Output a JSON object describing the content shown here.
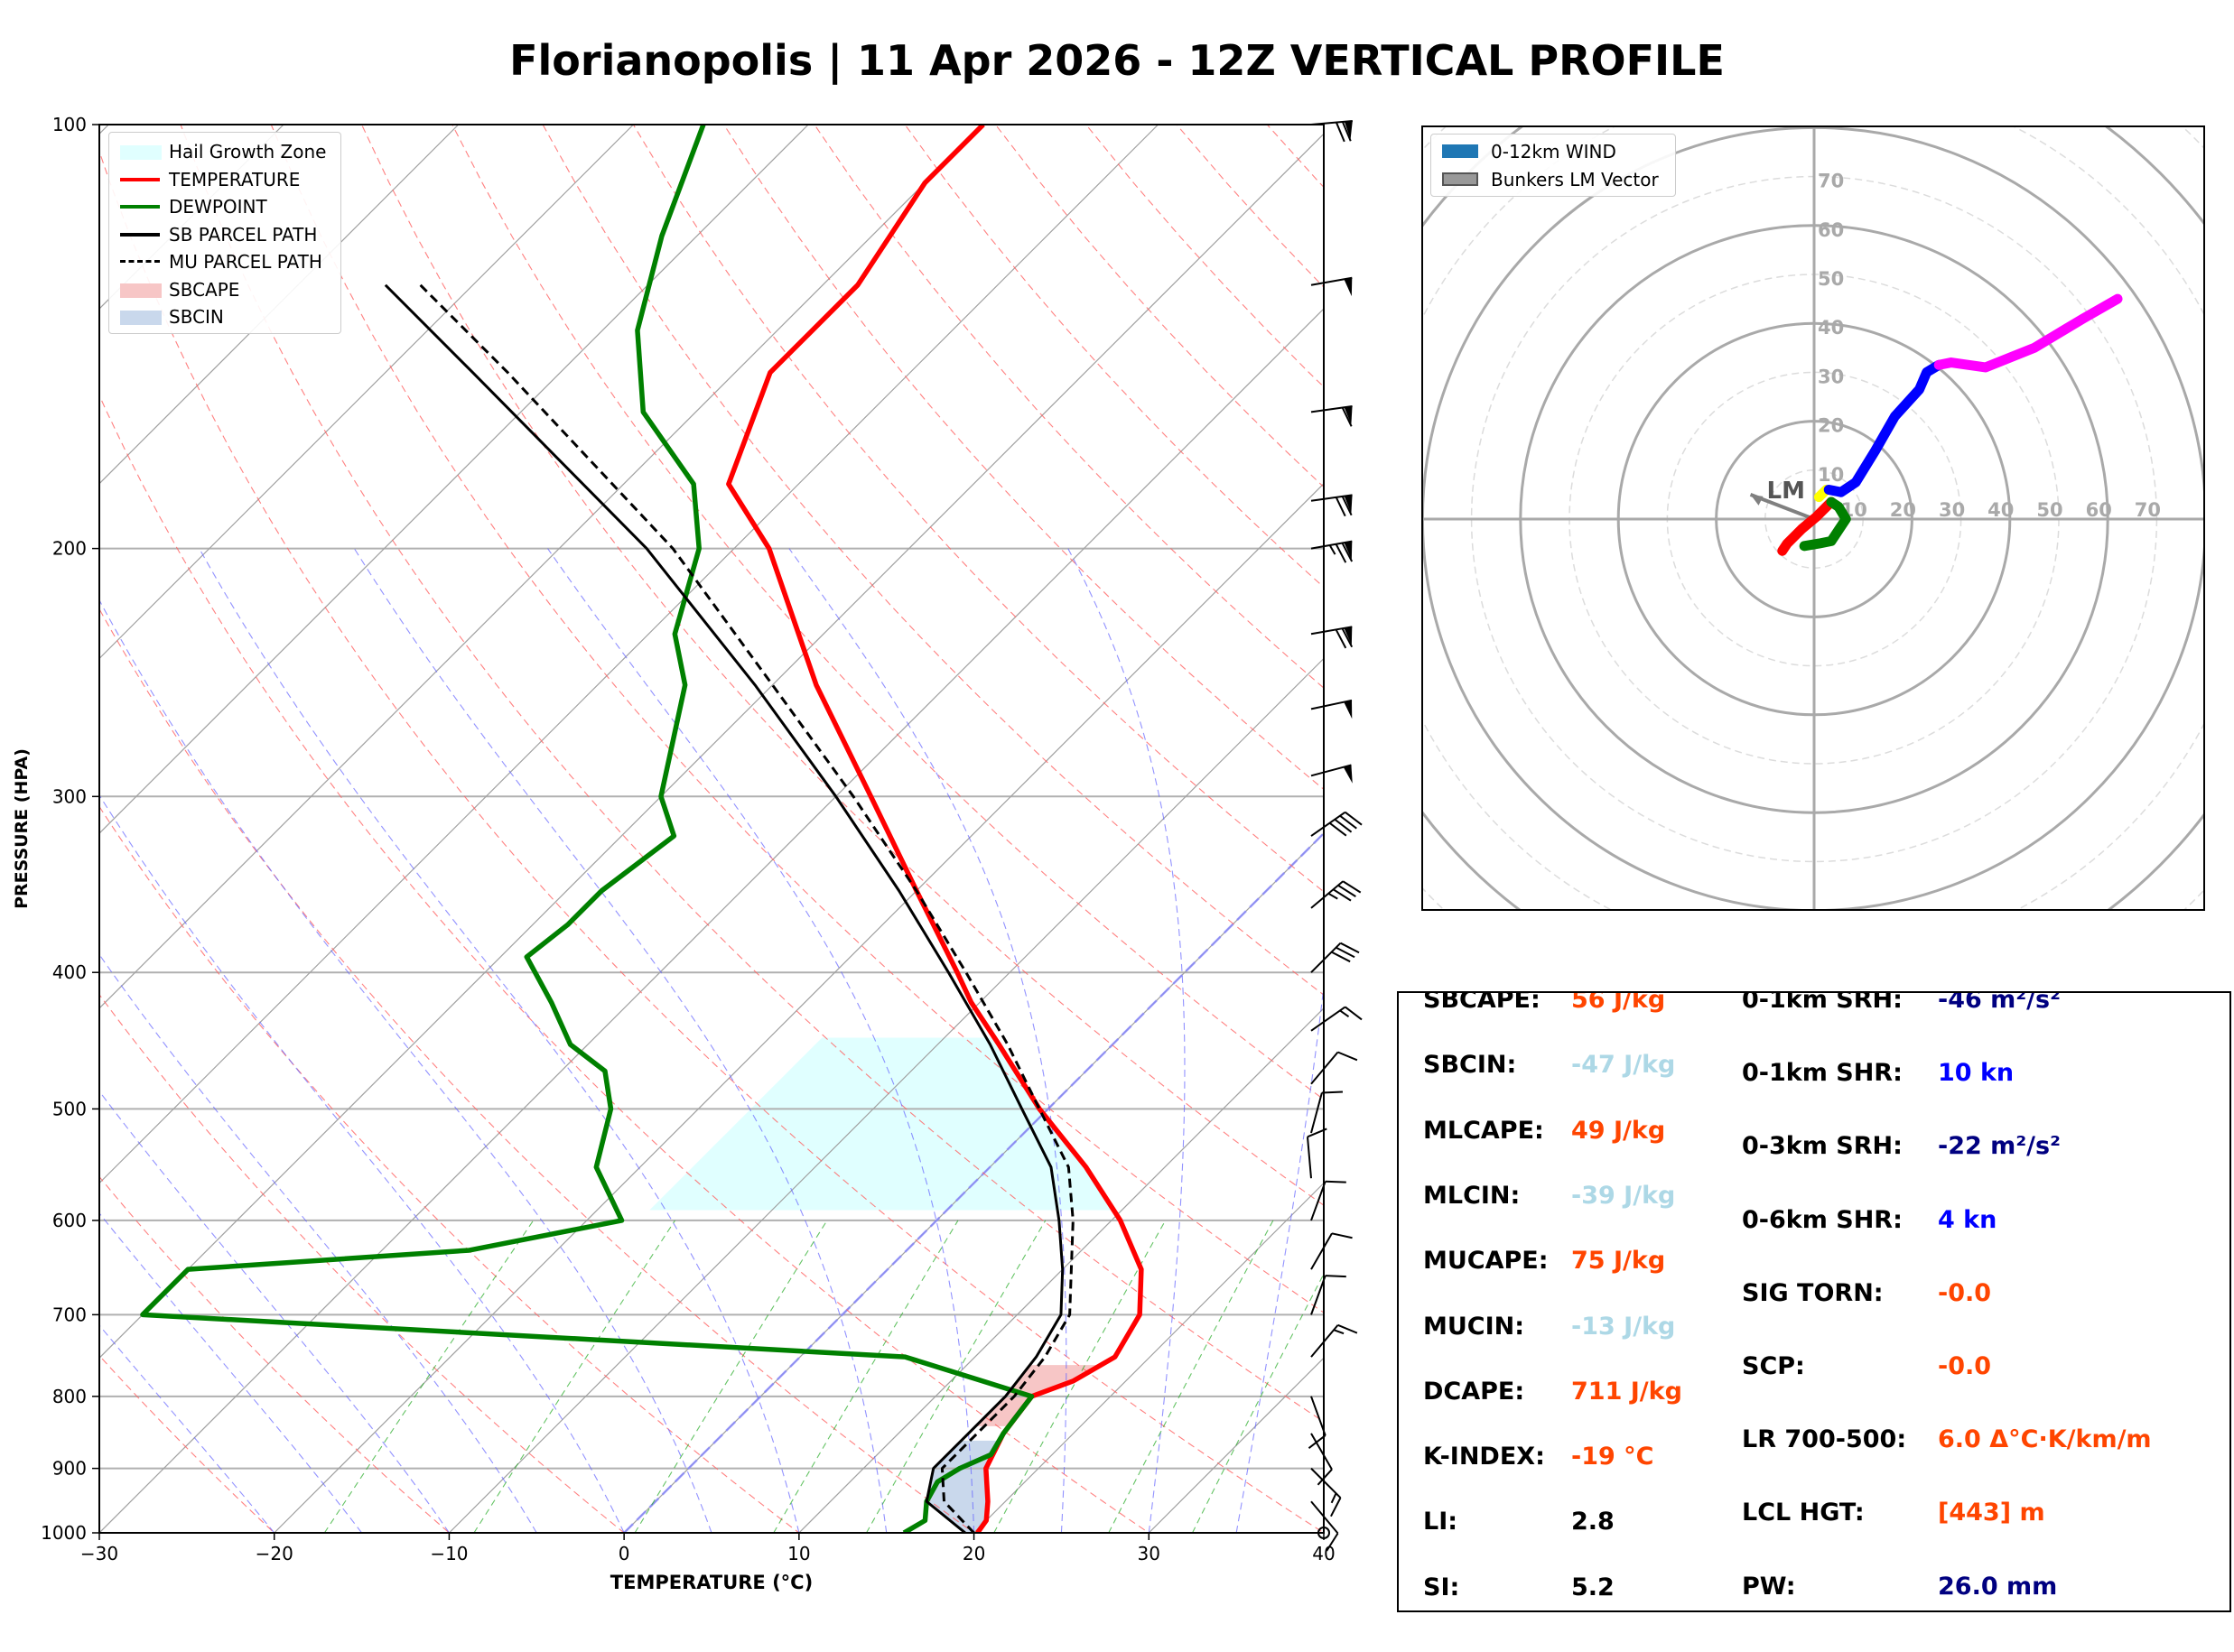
{
  "title": "Florianopolis | 11 Apr 2026 - 12Z VERTICAL PROFILE",
  "chart_data": [
    {
      "type": "line",
      "subtype": "skew-t log-p diagram",
      "xlabel": "TEMPERATURE (°C)",
      "ylabel": "PRESSURE (HPA)",
      "xlim": [
        -30,
        40
      ],
      "ylim": [
        1000,
        100
      ],
      "y_scale": "log",
      "x_ticks": [
        -30,
        -20,
        -10,
        0,
        10,
        20,
        30,
        40
      ],
      "y_ticks": [
        100,
        200,
        300,
        400,
        500,
        600,
        700,
        800,
        900,
        1000
      ],
      "grid": true,
      "legend_position": "top-left",
      "legend": [
        {
          "label": "Hail Growth Zone",
          "color": "#e0ffff",
          "style": "fill"
        },
        {
          "label": "TEMPERATURE",
          "color": "#ff0000",
          "style": "solid"
        },
        {
          "label": "DEWPOINT",
          "color": "#008000",
          "style": "solid"
        },
        {
          "label": "SB PARCEL PATH",
          "color": "#000000",
          "style": "solid"
        },
        {
          "label": "MU PARCEL PATH",
          "color": "#000000",
          "style": "dashed"
        },
        {
          "label": "SBCAPE",
          "color": "#f7c6c6",
          "style": "fill"
        },
        {
          "label": "SBCIN",
          "color": "#c9d8ec",
          "style": "fill"
        }
      ],
      "hail_growth_zone_hpa": [
        445,
        590
      ],
      "series": [
        {
          "name": "TEMPERATURE",
          "color": "#ff0000",
          "pressure": [
            1000,
            980,
            950,
            900,
            850,
            800,
            780,
            750,
            700,
            650,
            600,
            550,
            500,
            450,
            420,
            400,
            350,
            300,
            250,
            200,
            180,
            150,
            130,
            110,
            100
          ],
          "values": [
            20.2,
            20.0,
            19.0,
            17.0,
            16.0,
            15.5,
            17.0,
            18.0,
            17.0,
            14.5,
            10.5,
            5.5,
            -0.5,
            -6.5,
            -10.5,
            -13.0,
            -20.0,
            -28.0,
            -37.5,
            -48.0,
            -54.0,
            -58.0,
            -58.0,
            -60.0,
            -60.0
          ]
        },
        {
          "name": "DEWPOINT",
          "color": "#008000",
          "pressure": [
            1000,
            980,
            950,
            920,
            900,
            880,
            850,
            830,
            800,
            750,
            700,
            650,
            630,
            600,
            550,
            500,
            470,
            450,
            420,
            390,
            370,
            350,
            320,
            300,
            250,
            230,
            200,
            180,
            160,
            140,
            120,
            100
          ],
          "values": [
            16.0,
            16.5,
            15.5,
            15.0,
            15.5,
            16.5,
            16.0,
            15.8,
            15.5,
            6.0,
            -40.0,
            -40.0,
            -25.0,
            -18.0,
            -22.5,
            -25.0,
            -27.5,
            -31.0,
            -34.5,
            -38.5,
            -38.0,
            -38.0,
            -37.0,
            -40.0,
            -45.0,
            -48.5,
            -52.0,
            -56.0,
            -63.0,
            -68.0,
            -72.0,
            -76.0
          ]
        },
        {
          "name": "SB PARCEL PATH",
          "color": "#000000",
          "pressure": [
            1000,
            950,
            900,
            850,
            800,
            750,
            700,
            650,
            600,
            550,
            500,
            450,
            400,
            350,
            300,
            250,
            200,
            150,
            130
          ],
          "values": [
            19.5,
            15.5,
            14.0,
            14.0,
            14.0,
            13.5,
            12.5,
            10.0,
            7.0,
            3.5,
            -1.5,
            -7.0,
            -13.5,
            -21.0,
            -30.0,
            -41.0,
            -55.0,
            -75.0,
            -85.0
          ]
        },
        {
          "name": "MU PARCEL PATH",
          "color": "#000000",
          "dashed": true,
          "pressure": [
            1000,
            950,
            900,
            850,
            800,
            750,
            700,
            650,
            600,
            550,
            500,
            450,
            400,
            350,
            300,
            250,
            200,
            150,
            130
          ],
          "values": [
            20.0,
            16.5,
            14.5,
            14.5,
            14.5,
            14.0,
            13.0,
            10.5,
            7.8,
            4.5,
            -0.5,
            -6.0,
            -12.5,
            -20.0,
            -29.0,
            -40.0,
            -53.5,
            -73.0,
            -83.0
          ]
        }
      ],
      "wind_barbs": [
        {
          "pressure": 100,
          "speed_kt": 70,
          "direction_deg": 265
        },
        {
          "pressure": 130,
          "speed_kt": 50,
          "direction_deg": 260
        },
        {
          "pressure": 160,
          "speed_kt": 60,
          "direction_deg": 262
        },
        {
          "pressure": 185,
          "speed_kt": 70,
          "direction_deg": 262
        },
        {
          "pressure": 200,
          "speed_kt": 75,
          "direction_deg": 260
        },
        {
          "pressure": 230,
          "speed_kt": 70,
          "direction_deg": 260
        },
        {
          "pressure": 260,
          "speed_kt": 50,
          "direction_deg": 258
        },
        {
          "pressure": 290,
          "speed_kt": 50,
          "direction_deg": 255
        },
        {
          "pressure": 320,
          "speed_kt": 40,
          "direction_deg": 235
        },
        {
          "pressure": 360,
          "speed_kt": 35,
          "direction_deg": 230
        },
        {
          "pressure": 400,
          "speed_kt": 30,
          "direction_deg": 225
        },
        {
          "pressure": 440,
          "speed_kt": 15,
          "direction_deg": 235
        },
        {
          "pressure": 480,
          "speed_kt": 10,
          "direction_deg": 220
        },
        {
          "pressure": 520,
          "speed_kt": 10,
          "direction_deg": 195
        },
        {
          "pressure": 560,
          "speed_kt": 10,
          "direction_deg": 175
        },
        {
          "pressure": 600,
          "speed_kt": 10,
          "direction_deg": 200
        },
        {
          "pressure": 650,
          "speed_kt": 10,
          "direction_deg": 210
        },
        {
          "pressure": 700,
          "speed_kt": 10,
          "direction_deg": 200
        },
        {
          "pressure": 750,
          "speed_kt": 15,
          "direction_deg": 220
        },
        {
          "pressure": 800,
          "speed_kt": 10,
          "direction_deg": 340
        },
        {
          "pressure": 850,
          "speed_kt": 10,
          "direction_deg": 330
        },
        {
          "pressure": 900,
          "speed_kt": 15,
          "direction_deg": 315
        },
        {
          "pressure": 950,
          "speed_kt": 10,
          "direction_deg": 320
        },
        {
          "pressure": 1000,
          "speed_kt": 0,
          "direction_deg": 0
        }
      ]
    },
    {
      "type": "line",
      "subtype": "hodograph",
      "units": "kn",
      "ring_labels": [
        10,
        20,
        30,
        40,
        50,
        60,
        70
      ],
      "legend_position": "top-left",
      "legend": [
        {
          "label": "0-12km WIND",
          "color": "#1f77b4"
        },
        {
          "label": "Bunkers LM Vector",
          "color": "#999999"
        }
      ],
      "annotation": "LM",
      "bunkers_lm_vector": [
        -13,
        5
      ],
      "series": [
        {
          "segment": "0-1km",
          "color": "#ff0000",
          "u": [
            -6.5,
            -5.5,
            -2.5,
            0.5,
            2.5,
            3.5
          ],
          "v": [
            -6.5,
            -5,
            -2,
            0.5,
            2.5,
            3.5
          ]
        },
        {
          "segment": "1-3km",
          "color": "#008000",
          "u": [
            -2,
            1,
            3.5,
            6.5,
            5,
            3.5
          ],
          "v": [
            -5.5,
            -5,
            -4.5,
            0,
            2.5,
            3.5
          ]
        },
        {
          "segment": "3-6km",
          "color": "#ffff00",
          "u": [
            1,
            1.5,
            2.5
          ],
          "v": [
            4.5,
            5,
            6
          ]
        },
        {
          "segment": "6-9km",
          "color": "#0000ff",
          "u": [
            3,
            5.5,
            8.5,
            12.5,
            16.5,
            21.5,
            23,
            25.5
          ],
          "v": [
            6,
            5.5,
            7.5,
            14,
            21,
            26.5,
            30,
            31.5
          ]
        },
        {
          "segment": "9-12km",
          "color": "#ff00ff",
          "u": [
            25.5,
            28,
            35,
            45,
            55,
            62
          ],
          "v": [
            31.5,
            32,
            31,
            35,
            41,
            45
          ]
        }
      ]
    }
  ],
  "params": {
    "left": [
      {
        "label": "SBCAPE:",
        "value": "56 J/kg",
        "color": "#ff4500"
      },
      {
        "label": "SBCIN:",
        "value": "-47 J/kg",
        "color": "#add8e6"
      },
      {
        "label": "MLCAPE:",
        "value": "49 J/kg",
        "color": "#ff4500"
      },
      {
        "label": "MLCIN:",
        "value": "-39 J/kg",
        "color": "#add8e6"
      },
      {
        "label": "MUCAPE:",
        "value": "75 J/kg",
        "color": "#ff4500"
      },
      {
        "label": "MUCIN:",
        "value": "-13 J/kg",
        "color": "#add8e6"
      },
      {
        "label": "DCAPE:",
        "value": "711 J/kg",
        "color": "#ff4500"
      },
      {
        "label": "K-INDEX:",
        "value": "-19 °C",
        "color": "#ff4500"
      },
      {
        "label": "LI:",
        "value": "2.8",
        "color": "#000000"
      },
      {
        "label": "SI:",
        "value": "5.2",
        "color": "#000000"
      }
    ],
    "right": [
      {
        "label": "0-1km SRH:",
        "value": "-46 m²/s²",
        "color": "#000080"
      },
      {
        "label": "0-1km SHR:",
        "value": "10 kn",
        "color": "#0000ff"
      },
      {
        "label": "0-3km SRH:",
        "value": "-22 m²/s²",
        "color": "#000080"
      },
      {
        "label": "0-6km SHR:",
        "value": "4 kn",
        "color": "#0000ff"
      },
      {
        "label": "SIG TORN:",
        "value": "-0.0",
        "color": "#ff4500"
      },
      {
        "label": "SCP:",
        "value": "-0.0",
        "color": "#ff4500"
      },
      {
        "label": "LR 700-500:",
        "value": "6.0 Δ°C·K/km/m",
        "color": "#ff4500"
      },
      {
        "label": "LCL HGT:",
        "value": "[443] m",
        "color": "#ff4500"
      },
      {
        "label": "PW:",
        "value": "26.0 mm",
        "color": "#000080"
      }
    ]
  }
}
